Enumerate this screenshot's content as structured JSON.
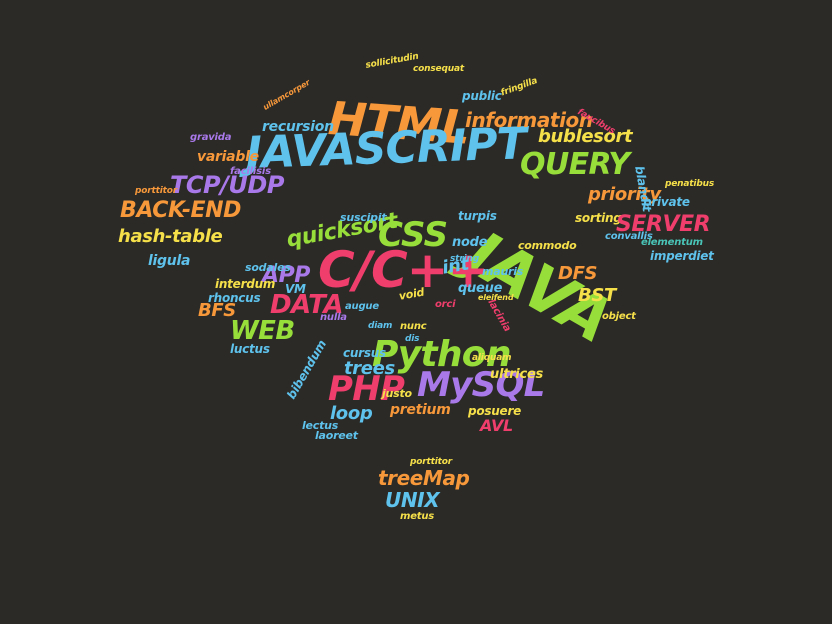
{
  "palette": {
    "background": "#2b2a27",
    "orange": "#f7983a",
    "blue": "#5ec2ec",
    "purple": "#a979ea",
    "green": "#98de3a",
    "pink": "#ef3e6c",
    "yellow": "#f6e04a",
    "teal": "#49c4b6"
  },
  "words": [
    {
      "text": "HTML",
      "color": "orange"
    },
    {
      "text": "JAVASCRIPT",
      "color": "blue"
    },
    {
      "text": "JAVA",
      "color": "green"
    },
    {
      "text": "C/C++",
      "color": "pink"
    },
    {
      "text": "Python",
      "color": "green"
    },
    {
      "text": "MySQL",
      "color": "purple"
    },
    {
      "text": "PHP",
      "color": "pink"
    },
    {
      "text": "CSS",
      "color": "green"
    },
    {
      "text": "QUERY",
      "color": "green"
    },
    {
      "text": "information",
      "color": "orange"
    },
    {
      "text": "TCP/UDP",
      "color": "purple"
    },
    {
      "text": "BACK-END",
      "color": "orange"
    },
    {
      "text": "hash-table",
      "color": "yellow"
    },
    {
      "text": "ligula",
      "color": "blue"
    },
    {
      "text": "recursion",
      "color": "blue"
    },
    {
      "text": "variable",
      "color": "orange"
    },
    {
      "text": "facilisis",
      "color": "purple"
    },
    {
      "text": "gravida",
      "color": "purple"
    },
    {
      "text": "porttitor",
      "color": "orange"
    },
    {
      "text": "ullamcorper",
      "color": "orange"
    },
    {
      "text": "sollicitudin",
      "color": "yellow"
    },
    {
      "text": "consequat",
      "color": "yellow"
    },
    {
      "text": "public",
      "color": "blue"
    },
    {
      "text": "fringilla",
      "color": "yellow"
    },
    {
      "text": "bublesort",
      "color": "yellow"
    },
    {
      "text": "faucibus",
      "color": "pink"
    },
    {
      "text": "priority",
      "color": "orange"
    },
    {
      "text": "sorting",
      "color": "yellow"
    },
    {
      "text": "private",
      "color": "blue"
    },
    {
      "text": "penatibus",
      "color": "yellow"
    },
    {
      "text": "convallis",
      "color": "blue"
    },
    {
      "text": "SERVER",
      "color": "pink"
    },
    {
      "text": "elementum",
      "color": "teal"
    },
    {
      "text": "imperdiet",
      "color": "blue"
    },
    {
      "text": "blandit",
      "color": "blue"
    },
    {
      "text": "quicksort",
      "color": "green"
    },
    {
      "text": "suscipit",
      "color": "blue"
    },
    {
      "text": "turpis",
      "color": "blue"
    },
    {
      "text": "node",
      "color": "blue"
    },
    {
      "text": "string",
      "color": "blue"
    },
    {
      "text": "commodo",
      "color": "yellow"
    },
    {
      "text": "int",
      "color": "blue"
    },
    {
      "text": "mauris",
      "color": "blue"
    },
    {
      "text": "queue",
      "color": "blue"
    },
    {
      "text": "DFS",
      "color": "orange"
    },
    {
      "text": "BST",
      "color": "yellow"
    },
    {
      "text": "object",
      "color": "yellow"
    },
    {
      "text": "lacinia",
      "color": "pink"
    },
    {
      "text": "APP",
      "color": "purple"
    },
    {
      "text": "VM",
      "color": "blue"
    },
    {
      "text": "sodales",
      "color": "blue"
    },
    {
      "text": "interdum",
      "color": "yellow"
    },
    {
      "text": "rhoncus",
      "color": "blue"
    },
    {
      "text": "DATA",
      "color": "pink"
    },
    {
      "text": "BFS",
      "color": "orange"
    },
    {
      "text": "WEB",
      "color": "green"
    },
    {
      "text": "luctus",
      "color": "blue"
    },
    {
      "text": "nulla",
      "color": "purple"
    },
    {
      "text": "void",
      "color": "yellow"
    },
    {
      "text": "orci",
      "color": "pink"
    },
    {
      "text": "augue",
      "color": "blue"
    },
    {
      "text": "diam",
      "color": "blue"
    },
    {
      "text": "eleifend",
      "color": "yellow"
    },
    {
      "text": "trees",
      "color": "blue"
    },
    {
      "text": "cursus",
      "color": "blue"
    },
    {
      "text": "nunc",
      "color": "yellow"
    },
    {
      "text": "dis",
      "color": "blue"
    },
    {
      "text": "ultrices",
      "color": "yellow"
    },
    {
      "text": "aliquam",
      "color": "yellow"
    },
    {
      "text": "bibendum",
      "color": "blue"
    },
    {
      "text": "loop",
      "color": "blue"
    },
    {
      "text": "justo",
      "color": "yellow"
    },
    {
      "text": "pretium",
      "color": "orange"
    },
    {
      "text": "posuere",
      "color": "yellow"
    },
    {
      "text": "AVL",
      "color": "pink"
    },
    {
      "text": "lectus",
      "color": "blue"
    },
    {
      "text": "laoreet",
      "color": "blue"
    },
    {
      "text": "porttitor",
      "color": "yellow"
    },
    {
      "text": "treeMap",
      "color": "orange"
    },
    {
      "text": "UNIX",
      "color": "blue"
    },
    {
      "text": "metus",
      "color": "yellow"
    }
  ]
}
